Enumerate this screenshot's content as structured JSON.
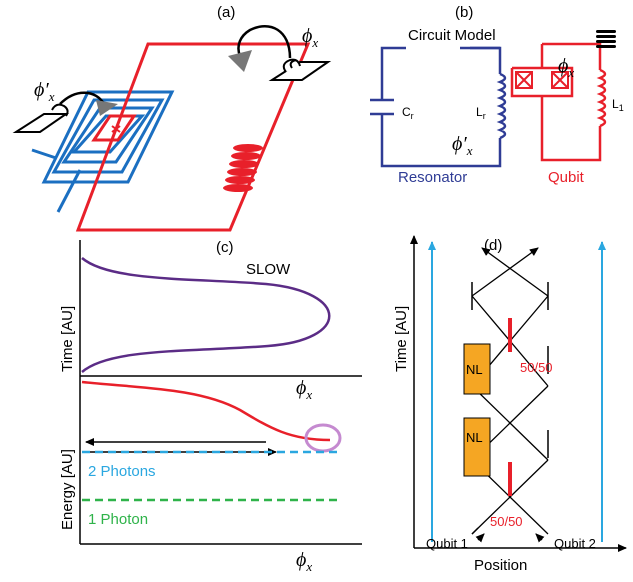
{
  "panels": {
    "a": {
      "label": "(a)",
      "phi": "ϕ",
      "phi_sub": "x",
      "phi_prime": "ϕ′",
      "phi_prime_sub": "x"
    },
    "b": {
      "label": "(b)",
      "title": "Circuit Model",
      "cap_label": "C",
      "cap_sub": "r",
      "ind_label": "L",
      "ind_sub": "r",
      "l1_label": "L",
      "l1_sub": "1",
      "phi": "ϕ",
      "phi_sub": "x",
      "phi_prime": "ϕ′",
      "phi_prime_sub": "x",
      "resonator": "Resonator",
      "qubit": "Qubit"
    },
    "c": {
      "label": "(c)",
      "slow": "SLOW",
      "time_axis": "Time  [AU]",
      "energy_axis": "Energy  [AU]",
      "phi": "ϕ",
      "phi_sub": "x",
      "two_photons": "2 Photons",
      "one_photon": "1 Photon"
    },
    "d": {
      "label": "(d)",
      "time_axis": "Time  [AU]",
      "position": "Position",
      "qubit1": "Qubit 1",
      "qubit2": "Qubit 2",
      "nl": "NL",
      "splitter": "50/50"
    }
  },
  "colors": {
    "red": "#e8202a",
    "blue": "#2f3c95",
    "cyan": "#2aa7e0",
    "purple": "#5b2c86",
    "green": "#2fb34a",
    "orange": "#f5a623",
    "pink": "#c58ad0"
  }
}
